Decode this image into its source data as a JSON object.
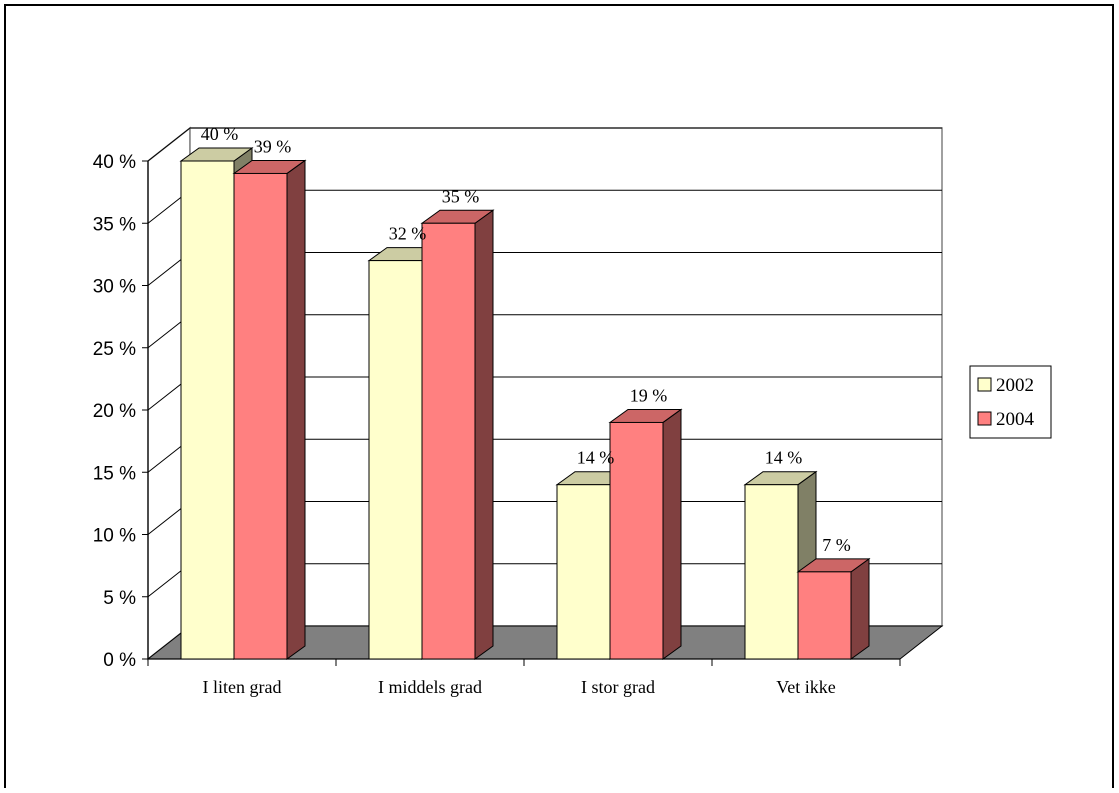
{
  "chart_data": {
    "type": "bar",
    "categories": [
      "I liten grad",
      "I middels grad",
      "I stor grad",
      "Vet ikke"
    ],
    "series": [
      {
        "name": "2002",
        "values": [
          40,
          32,
          14,
          14
        ],
        "labels": [
          "40 %",
          "32 %",
          "14 %",
          "14 %"
        ]
      },
      {
        "name": "2004",
        "values": [
          39,
          35,
          19,
          7
        ],
        "labels": [
          "39 %",
          "35 %",
          "19 %",
          "7 %"
        ]
      }
    ],
    "yticks": [
      "0 %",
      "5 %",
      "10 %",
      "15 %",
      "20 %",
      "25 %",
      "30 %",
      "35 %",
      "40 %"
    ],
    "ylim": [
      0,
      40
    ],
    "title": "",
    "xlabel": "",
    "ylabel": "",
    "grid": true,
    "legend_position": "right",
    "colors": {
      "series_2002": "#ffffcc",
      "series_2004": "#ff8080",
      "floor": "#808080",
      "background": "#ffffff"
    }
  }
}
